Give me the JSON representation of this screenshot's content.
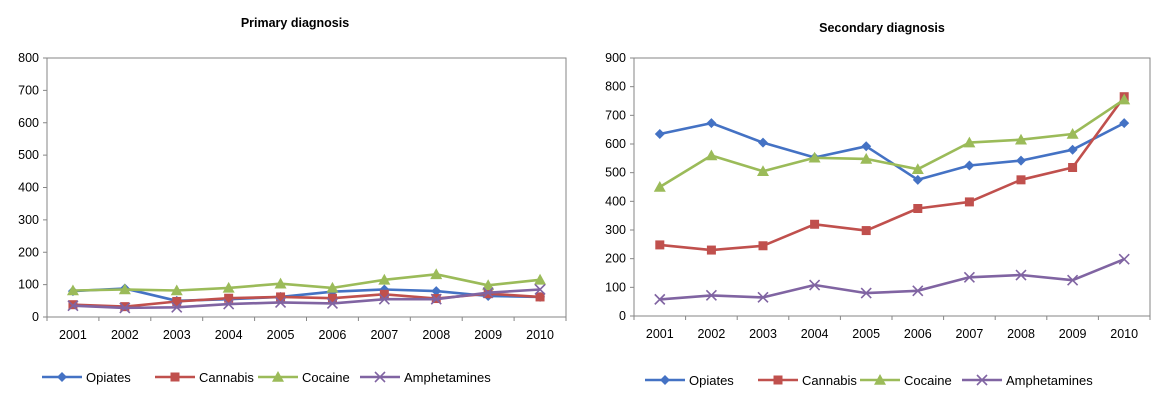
{
  "chart_data": [
    {
      "type": "line",
      "title": "Primary diagnosis",
      "xlabel": "",
      "ylabel": "",
      "categories": [
        "2001",
        "2002",
        "2003",
        "2004",
        "2005",
        "2006",
        "2007",
        "2008",
        "2009",
        "2010"
      ],
      "ylim": [
        0,
        800
      ],
      "yticks": [
        0,
        100,
        200,
        300,
        400,
        500,
        600,
        700,
        800
      ],
      "grid": false,
      "legend_position": "bottom",
      "series": [
        {
          "name": "Opiates",
          "color": "#4472C4",
          "marker": "diamond",
          "values": [
            80,
            88,
            50,
            55,
            62,
            78,
            85,
            80,
            65,
            62
          ]
        },
        {
          "name": "Cannabis",
          "color": "#C0504D",
          "marker": "square",
          "values": [
            38,
            32,
            48,
            58,
            62,
            58,
            70,
            57,
            72,
            62
          ]
        },
        {
          "name": "Cocaine",
          "color": "#9BBB59",
          "marker": "triangle",
          "values": [
            82,
            85,
            82,
            90,
            103,
            90,
            115,
            132,
            98,
            115
          ]
        },
        {
          "name": "Amphetamines",
          "color": "#8064A2",
          "marker": "x",
          "values": [
            35,
            28,
            30,
            40,
            45,
            42,
            55,
            55,
            75,
            85
          ]
        }
      ]
    },
    {
      "type": "line",
      "title": "Secondary diagnosis",
      "xlabel": "",
      "ylabel": "",
      "categories": [
        "2001",
        "2002",
        "2003",
        "2004",
        "2005",
        "2006",
        "2007",
        "2008",
        "2009",
        "2010"
      ],
      "ylim": [
        0,
        900
      ],
      "yticks": [
        0,
        100,
        200,
        300,
        400,
        500,
        600,
        700,
        800,
        900
      ],
      "grid": false,
      "legend_position": "bottom",
      "series": [
        {
          "name": "Opiates",
          "color": "#4472C4",
          "marker": "diamond",
          "values": [
            635,
            673,
            605,
            553,
            592,
            475,
            525,
            542,
            580,
            673
          ]
        },
        {
          "name": "Cannabis",
          "color": "#C0504D",
          "marker": "square",
          "values": [
            248,
            230,
            245,
            320,
            298,
            375,
            398,
            475,
            518,
            765
          ]
        },
        {
          "name": "Cocaine",
          "color": "#9BBB59",
          "marker": "triangle",
          "values": [
            450,
            560,
            505,
            552,
            548,
            512,
            605,
            615,
            635,
            755
          ]
        },
        {
          "name": "Amphetamines",
          "color": "#8064A2",
          "marker": "x",
          "values": [
            58,
            72,
            65,
            108,
            80,
            88,
            135,
            143,
            125,
            198
          ]
        }
      ]
    }
  ]
}
